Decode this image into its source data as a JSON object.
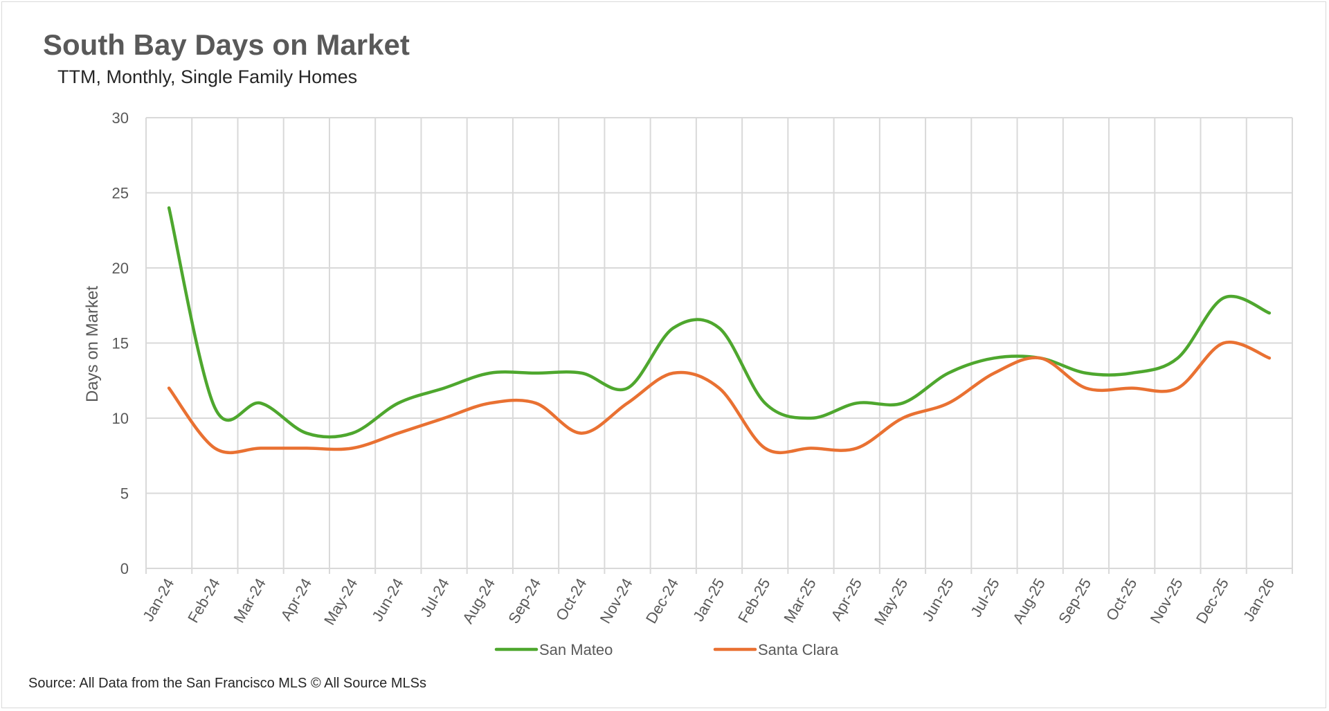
{
  "title": "South Bay Days on Market",
  "subtitle": "TTM, Monthly, Single Family Homes",
  "source": "Source: All Data from the San Francisco MLS © All Source MLSs",
  "chart_data": {
    "type": "line",
    "title": "South Bay Days on Market",
    "subtitle": "TTM, Monthly, Single Family Homes",
    "xlabel": "",
    "ylabel": "Days on Market",
    "ylim": [
      0,
      30
    ],
    "yticks": [
      0,
      5,
      10,
      15,
      20,
      25,
      30
    ],
    "grid": true,
    "legend_position": "bottom",
    "smooth": true,
    "categories": [
      "Jan-24",
      "Feb-24",
      "Mar-24",
      "Apr-24",
      "May-24",
      "Jun-24",
      "Jul-24",
      "Aug-24",
      "Sep-24",
      "Oct-24",
      "Nov-24",
      "Dec-24",
      "Jan-25",
      "Feb-25",
      "Mar-25",
      "Apr-25",
      "May-25",
      "Jun-25",
      "Jul-25",
      "Aug-25",
      "Sep-25",
      "Oct-25",
      "Nov-25",
      "Dec-25",
      "Jan-26"
    ],
    "series": [
      {
        "name": "San Mateo",
        "color": "#4ea72e",
        "values": [
          24,
          10.7,
          11,
          9,
          9,
          11,
          12,
          13,
          13,
          13,
          12,
          16,
          16,
          11,
          10,
          11,
          11,
          13,
          14,
          14,
          13,
          13,
          14,
          18,
          17
        ]
      },
      {
        "name": "Santa Clara",
        "color": "#e97132",
        "values": [
          12,
          8,
          8,
          8,
          8,
          9,
          10,
          11,
          11,
          9,
          11,
          13,
          12,
          8,
          8,
          8,
          10,
          11,
          13,
          14,
          12,
          12,
          12,
          15,
          14
        ]
      }
    ]
  }
}
